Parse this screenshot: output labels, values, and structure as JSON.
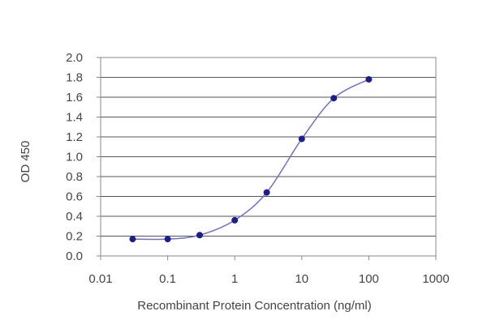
{
  "chart_data": {
    "type": "scatter",
    "title": "",
    "xlabel": "Recombinant Protein Concentration (ng/ml)",
    "ylabel": "OD 450",
    "x_scale": "log",
    "xlim": [
      0.01,
      1000
    ],
    "ylim": [
      0.0,
      2.0
    ],
    "x_ticks": [
      "0.01",
      "0.1",
      "1",
      "10",
      "100",
      "1000"
    ],
    "y_ticks": [
      "0.0",
      "0.2",
      "0.4",
      "0.6",
      "0.8",
      "1.0",
      "1.2",
      "1.4",
      "1.6",
      "1.8",
      "2.0"
    ],
    "grid": "horizontal",
    "fit_curve": true,
    "series": [
      {
        "x": [
          0.03,
          0.1,
          0.3,
          1,
          3,
          10,
          30,
          100
        ],
        "y": [
          0.17,
          0.17,
          0.21,
          0.36,
          0.64,
          1.18,
          1.59,
          1.78
        ]
      }
    ],
    "colors": {
      "series": "#1c1f8a",
      "curve": "#6f6fc8",
      "grid": "#555555",
      "axis": "#888888",
      "text": "#444444"
    }
  }
}
